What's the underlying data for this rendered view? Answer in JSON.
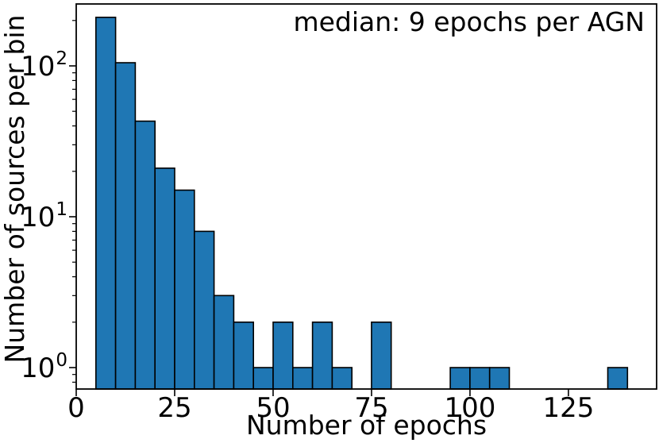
{
  "chart_data": {
    "type": "bar",
    "subtype": "histogram",
    "title": "",
    "annotation": "median: 9 epochs per AGN",
    "xlabel": "Number of epochs",
    "ylabel": "Number of sources per bin",
    "yscale": "log",
    "grid": false,
    "legend": "none",
    "bin_width": 5,
    "bins": [
      {
        "start": 5,
        "end": 10,
        "count": 210
      },
      {
        "start": 10,
        "end": 15,
        "count": 105
      },
      {
        "start": 15,
        "end": 20,
        "count": 43
      },
      {
        "start": 20,
        "end": 25,
        "count": 21
      },
      {
        "start": 25,
        "end": 30,
        "count": 15
      },
      {
        "start": 30,
        "end": 35,
        "count": 8
      },
      {
        "start": 35,
        "end": 40,
        "count": 3
      },
      {
        "start": 40,
        "end": 45,
        "count": 2
      },
      {
        "start": 45,
        "end": 50,
        "count": 1
      },
      {
        "start": 50,
        "end": 55,
        "count": 2
      },
      {
        "start": 55,
        "end": 60,
        "count": 1
      },
      {
        "start": 60,
        "end": 65,
        "count": 2
      },
      {
        "start": 65,
        "end": 70,
        "count": 1
      },
      {
        "start": 75,
        "end": 80,
        "count": 2
      },
      {
        "start": 95,
        "end": 100,
        "count": 1
      },
      {
        "start": 100,
        "end": 105,
        "count": 1
      },
      {
        "start": 105,
        "end": 110,
        "count": 1
      },
      {
        "start": 135,
        "end": 140,
        "count": 1
      }
    ],
    "x_tick_labels": [
      "0",
      "25",
      "50",
      "75",
      "100",
      "125"
    ],
    "x_tick_values": [
      0,
      25,
      50,
      75,
      100,
      125
    ],
    "y_major_ticks": [
      {
        "value": 1,
        "base": "10",
        "exp": "0"
      },
      {
        "value": 10,
        "base": "10",
        "exp": "1"
      },
      {
        "value": 100,
        "base": "10",
        "exp": "2"
      }
    ],
    "y_minor_tick_values": [
      0.8,
      0.9,
      2,
      3,
      4,
      5,
      6,
      7,
      8,
      9,
      20,
      30,
      40,
      50,
      60,
      70,
      80,
      90,
      200
    ],
    "xlim": [
      0,
      147.4
    ],
    "ylim": [
      0.72,
      258
    ],
    "bar_color": "#1f77b4",
    "bar_edge_color": "#000000",
    "axis_color": "#000000",
    "text_color": "#000000",
    "background": "#ffffff"
  }
}
